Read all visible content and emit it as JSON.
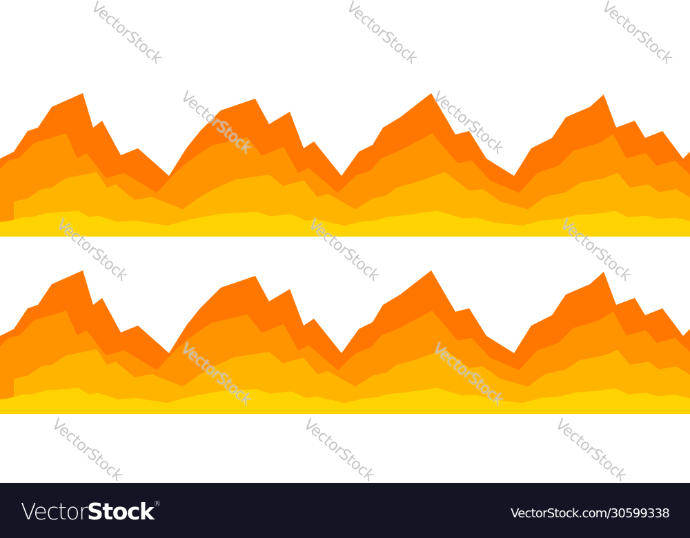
{
  "illustration": {
    "description_tag": "two seamless flame borders",
    "colors": {
      "outer": "#FF7700",
      "middle": "#FF9300",
      "inner": "#FFB400",
      "base": "#FFD300",
      "background": "#FFFFFF"
    }
  },
  "watermark": {
    "text": "VectorStock"
  },
  "footer": {
    "background": "#131525",
    "logo_light": "Vector",
    "logo_bold": "Stock",
    "logo_reg": "®",
    "image_id": "VectorStock.com/30599338"
  }
}
